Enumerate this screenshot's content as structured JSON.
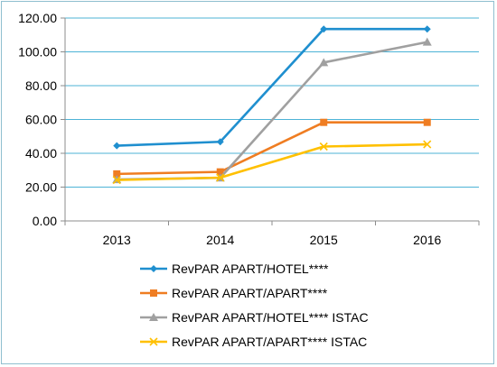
{
  "chart_data": {
    "type": "line",
    "categories": [
      "2013",
      "2014",
      "2015",
      "2016"
    ],
    "ylim": [
      0,
      120
    ],
    "yticks": [
      "0.00",
      "20.00",
      "40.00",
      "60.00",
      "80.00",
      "100.00",
      "120.00"
    ],
    "grid": true,
    "legend_position": "bottom",
    "series": [
      {
        "name": "RevPAR APART/HOTEL****",
        "values": [
          44.5,
          46.8,
          113.5,
          113.5
        ],
        "color": "#1f8fcf",
        "marker": "diamond"
      },
      {
        "name": "RevPAR APART/APART****",
        "values": [
          27.8,
          29.0,
          58.3,
          58.3
        ],
        "color": "#ef7d22",
        "marker": "square"
      },
      {
        "name": "RevPAR APART/HOTEL**** ISTAC",
        "values": [
          24.5,
          25.5,
          93.7,
          105.8
        ],
        "color": "#a0a0a0",
        "marker": "triangle"
      },
      {
        "name": "RevPAR APART/APART**** ISTAC",
        "values": [
          24.2,
          25.6,
          44.0,
          45.3
        ],
        "color": "#ffc000",
        "marker": "x"
      }
    ]
  }
}
